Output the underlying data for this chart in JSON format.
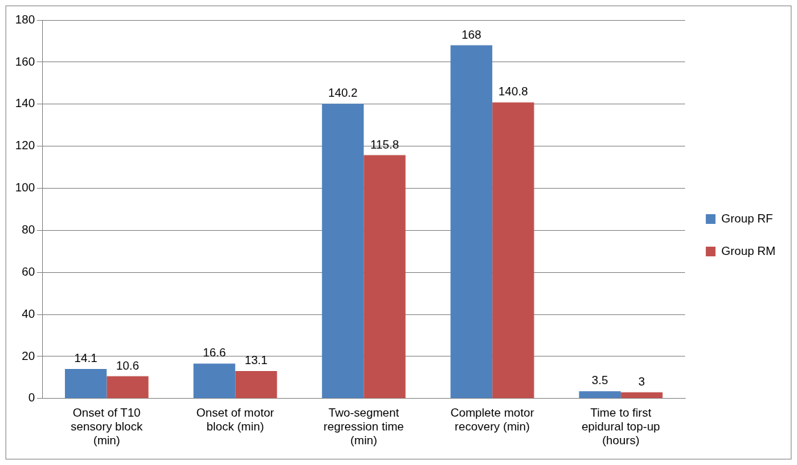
{
  "chart_data": {
    "type": "bar",
    "categories": [
      "Onset of T10 sensory block (min)",
      "Onset of motor block (min)",
      "Two-segment regression time (min)",
      "Complete motor recovery (min)",
      "Time to first epidural top-up (hours)"
    ],
    "series": [
      {
        "name": "Group RF",
        "color": "#4f81bd",
        "values": [
          14.1,
          16.6,
          140.2,
          168,
          3.5
        ]
      },
      {
        "name": "Group RM",
        "color": "#c0504d",
        "values": [
          10.6,
          13.1,
          115.8,
          140.8,
          3
        ]
      }
    ],
    "ylim": [
      0,
      180
    ],
    "yticks": [
      0,
      20,
      40,
      60,
      80,
      100,
      120,
      140,
      160,
      180
    ],
    "grid": "y",
    "legend": "right",
    "data_labels": true
  }
}
